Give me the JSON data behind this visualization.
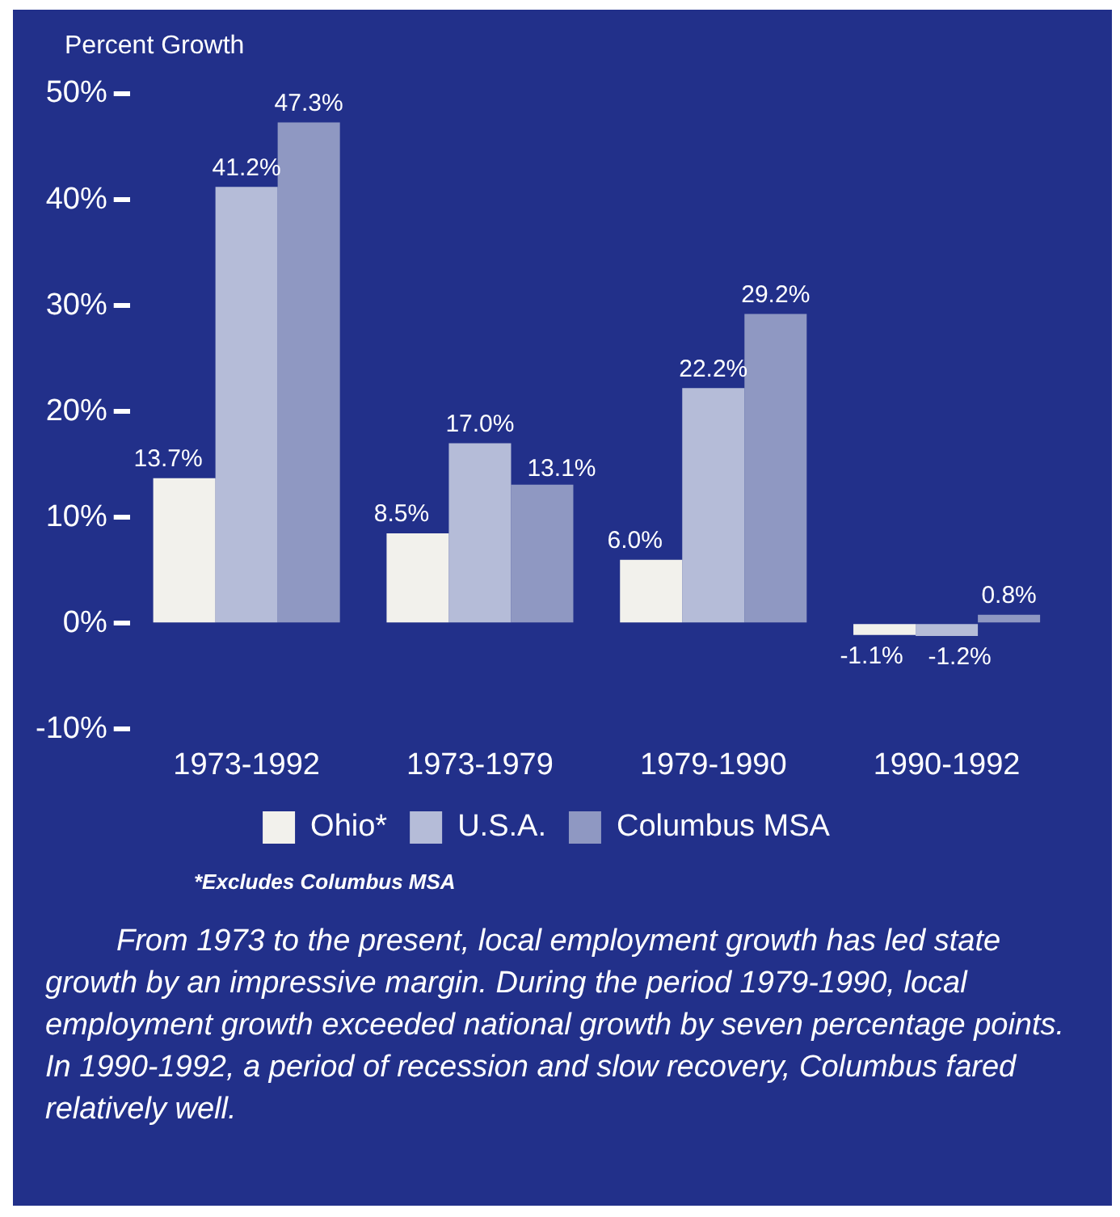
{
  "chart_data": {
    "type": "bar",
    "ylabel": "Percent Growth",
    "categories": [
      "1973-1992",
      "1973-1979",
      "1979-1990",
      "1990-1992"
    ],
    "series": [
      {
        "name": "Ohio*",
        "color": "#f2f1ec",
        "values": [
          13.7,
          8.5,
          6.0,
          -1.1
        ],
        "value_labels": [
          "13.7%",
          "8.5%",
          "6.0%",
          "-1.1%"
        ]
      },
      {
        "name": "U.S.A.",
        "color": "#b5bcd8",
        "values": [
          41.2,
          17.0,
          22.2,
          -1.2
        ],
        "value_labels": [
          "41.2%",
          "17.0%",
          "22.2%",
          "-1.2%"
        ]
      },
      {
        "name": "Columbus MSA",
        "color": "#8f98c2",
        "values": [
          47.3,
          13.1,
          29.2,
          0.8
        ],
        "value_labels": [
          "47.3%",
          "13.1%",
          "29.2%",
          "0.8%"
        ]
      }
    ],
    "ylim": [
      -10,
      50
    ],
    "yticks": [
      {
        "value": -10,
        "label": "-10%"
      },
      {
        "value": 0,
        "label": "0%"
      },
      {
        "value": 10,
        "label": "10%"
      },
      {
        "value": 20,
        "label": "20%"
      },
      {
        "value": 30,
        "label": "30%"
      },
      {
        "value": 40,
        "label": "40%"
      },
      {
        "value": 50,
        "label": "50%"
      }
    ],
    "grid": false,
    "legend": "bottom",
    "annotations": [
      "*Excludes Columbus MSA",
      "From 1973 to the present, local employment growth has led state growth by an impressive margin. During the period 1979-1990, local employment growth exceeded national growth by seven percentage points. In 1990-1992, a period of recession and slow recovery, Columbus fared relatively well."
    ]
  }
}
